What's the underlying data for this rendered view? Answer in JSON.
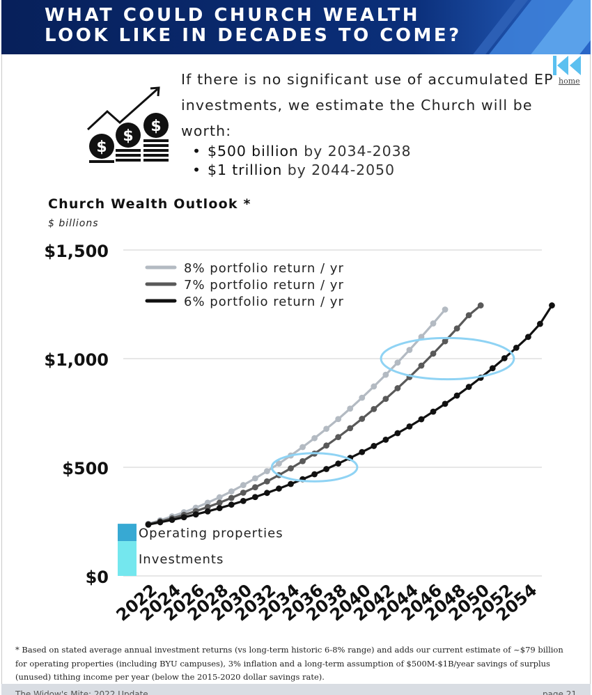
{
  "header": {
    "title": "WHAT COULD CHURCH WEALTH\nLOOK LIKE IN DECADES TO COME?"
  },
  "nav": {
    "home_label": "home"
  },
  "intro": {
    "text": "If there is no significant use of accumulated EP investments, we estimate the Church will be worth:",
    "bullets": [
      {
        "bold": "$500 billion",
        "rest": "by 2034-2038"
      },
      {
        "bold": "$1 trillion",
        "rest": "by 2044-2050"
      }
    ]
  },
  "chart_data": {
    "type": "line",
    "title": "Church Wealth Outlook *",
    "subtitle": "$ billions",
    "ylim": [
      0,
      1500
    ],
    "yticks": [
      0,
      500,
      1000,
      1500
    ],
    "ytick_labels": [
      "$0",
      "$500",
      "$1,000",
      "$1,500"
    ],
    "xlim": [
      2020.3,
      2054.8
    ],
    "xtick_labels": [
      "2022",
      "2024",
      "2026",
      "2028",
      "2030",
      "2032",
      "2034",
      "2036",
      "2038",
      "2040",
      "2042",
      "2044",
      "2046",
      "2048",
      "2050",
      "2052",
      "2054"
    ],
    "grid": true,
    "legend_position": "top-left",
    "series": [
      {
        "name": "8% portfolio return / yr",
        "color": "#b3bac2",
        "start_year": 2022,
        "values": [
          240,
          256,
          274,
          293,
          314,
          337,
          362,
          389,
          418,
          449,
          482,
          517,
          554,
          593,
          634,
          677,
          722,
          770,
          820,
          872,
          926,
          982,
          1040,
          1100,
          1162,
          1226
        ]
      },
      {
        "name": "7% portfolio return / yr",
        "color": "#595959",
        "start_year": 2022,
        "values": [
          238,
          251,
          265,
          281,
          298,
          317,
          337,
          359,
          383,
          408,
          435,
          464,
          495,
          528,
          563,
          600,
          639,
          680,
          723,
          768,
          815,
          864,
          915,
          968,
          1023,
          1080,
          1139,
          1200,
          1245
        ]
      },
      {
        "name": "6% portfolio return / yr",
        "color": "#111111",
        "start_year": 2022,
        "values": [
          236,
          247,
          258,
          270,
          283,
          297,
          312,
          328,
          345,
          363,
          382,
          402,
          423,
          445,
          468,
          492,
          517,
          543,
          570,
          598,
          627,
          657,
          688,
          721,
          756,
          792,
          830,
          870,
          912,
          956,
          1002,
          1050,
          1100,
          1160,
          1245
        ]
      }
    ],
    "highlights": [
      {
        "label": "$500 billion",
        "cx": 2036,
        "cy": 500,
        "rx": 3.6,
        "ry": 65
      },
      {
        "label": "$1 trillion",
        "cx": 2047.2,
        "cy": 1000,
        "rx": 5.6,
        "ry": 95
      }
    ],
    "base_blocks": [
      {
        "label": "Operating properties",
        "from": 240,
        "to": 160,
        "color": "#37a9d3"
      },
      {
        "label": "Investments",
        "from": 160,
        "to": 0,
        "color": "#74e7ee"
      }
    ]
  },
  "footnote": "* Based on stated average annual investment returns (vs long-term historic 6-8% range) and adds our current estimate of ~$79 billion for operating properties (including BYU campuses), 3% inflation and a long-term assumption of $500M-$1B/year savings of surplus (unused) tithing income per year (below the 2015-2020 dollar savings rate).",
  "bottom_bar": {
    "left": "The Widow's Mite: 2022 Update",
    "right": "page 21"
  }
}
